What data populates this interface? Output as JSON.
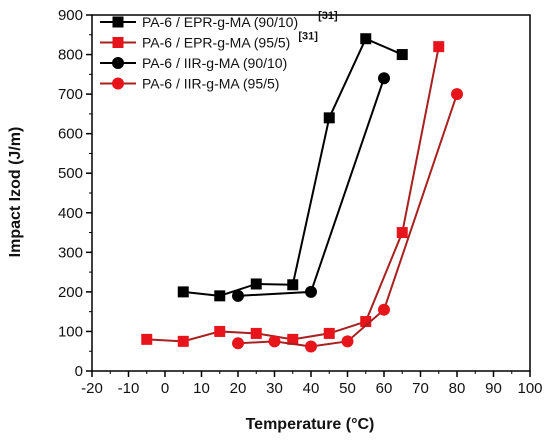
{
  "chart_data": {
    "type": "line",
    "xlabel": "Temperature (°C)",
    "ylabel": "Impact Izod  (J/m)",
    "xlim": [
      -20,
      100
    ],
    "ylim": [
      0,
      900
    ],
    "xticks": [
      -20,
      -10,
      0,
      10,
      20,
      30,
      40,
      50,
      60,
      70,
      80,
      90,
      100
    ],
    "yticks": [
      0,
      100,
      200,
      300,
      400,
      500,
      600,
      700,
      800,
      900
    ],
    "grid": false,
    "legend_position": "top-left",
    "series": [
      {
        "name": "PA-6 / EPR-g-MA (90/10)",
        "ref": "[31]",
        "marker": "square",
        "color": "#000000",
        "points": [
          [
            5,
            200
          ],
          [
            15,
            190
          ],
          [
            25,
            220
          ],
          [
            35,
            218
          ],
          [
            45,
            640
          ],
          [
            55,
            840
          ],
          [
            65,
            800
          ]
        ]
      },
      {
        "name": "PA-6 / EPR-g-MA (95/5)",
        "ref": "[31]",
        "marker": "square",
        "color": "#e8141b",
        "line_color": "#a8201f",
        "points": [
          [
            -5,
            80
          ],
          [
            5,
            75
          ],
          [
            15,
            100
          ],
          [
            25,
            95
          ],
          [
            35,
            80
          ],
          [
            45,
            95
          ],
          [
            55,
            125
          ],
          [
            65,
            350
          ],
          [
            75,
            820
          ]
        ]
      },
      {
        "name": "PA-6 / IIR-g-MA (90/10)",
        "ref": "",
        "marker": "circle",
        "color": "#000000",
        "points": [
          [
            20,
            190
          ],
          [
            40,
            200
          ],
          [
            60,
            740
          ]
        ]
      },
      {
        "name": "PA-6 / IIR-g-MA (95/5)",
        "ref": "",
        "marker": "circle",
        "color": "#e8141b",
        "line_color": "#a8201f",
        "points": [
          [
            20,
            70
          ],
          [
            30,
            75
          ],
          [
            40,
            62
          ],
          [
            50,
            75
          ],
          [
            60,
            155
          ],
          [
            80,
            700
          ]
        ]
      }
    ]
  }
}
